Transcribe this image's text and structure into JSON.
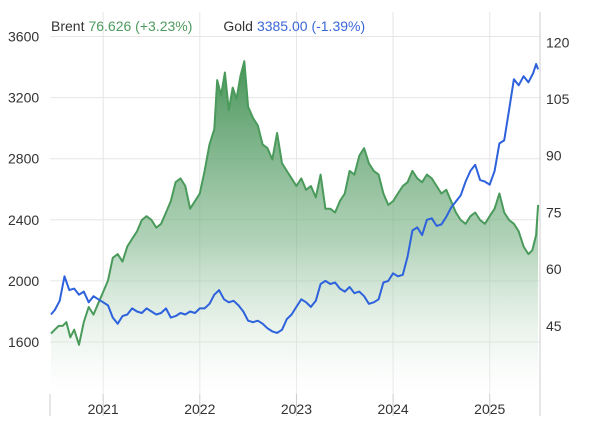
{
  "legend": {
    "brent": {
      "name": "Brent",
      "value": "76.626 (+3.23%)"
    },
    "gold": {
      "name": "Gold",
      "value": "3385.00 (-1.39%)"
    }
  },
  "colors": {
    "brent_line": "#4a9a5c",
    "brent_fill_top": "#3e8e50",
    "gold_line": "#2e62dc",
    "grid": "#e6e6e6",
    "axis": "#cccccc"
  },
  "chart_data": {
    "type": "line",
    "grid": true,
    "legend_placement": "top-left",
    "left_axis": {
      "series": "Gold",
      "ticks": [
        1600,
        2000,
        2400,
        2800,
        3200,
        3600
      ],
      "range": [
        1260,
        3760
      ]
    },
    "right_axis": {
      "series": "Brent",
      "ticks": [
        45,
        60,
        75,
        90,
        105,
        120
      ],
      "range": [
        27,
        128
      ]
    },
    "x_axis": {
      "ticks": [
        "2021",
        "2022",
        "2023",
        "2024",
        "2025"
      ],
      "range": [
        2020.45,
        2025.52
      ]
    },
    "series": [
      {
        "name": "Brent",
        "axis": "right",
        "style": "area",
        "x": [
          2020.46,
          2020.5,
          2020.54,
          2020.58,
          2020.62,
          2020.66,
          2020.7,
          2020.75,
          2020.8,
          2020.85,
          2020.9,
          2020.95,
          2021.0,
          2021.05,
          2021.1,
          2021.15,
          2021.2,
          2021.25,
          2021.3,
          2021.35,
          2021.4,
          2021.45,
          2021.5,
          2021.55,
          2021.6,
          2021.65,
          2021.7,
          2021.75,
          2021.8,
          2021.85,
          2021.9,
          2021.95,
          2022.0,
          2022.05,
          2022.1,
          2022.15,
          2022.18,
          2022.22,
          2022.26,
          2022.3,
          2022.34,
          2022.38,
          2022.42,
          2022.46,
          2022.5,
          2022.55,
          2022.6,
          2022.65,
          2022.7,
          2022.75,
          2022.8,
          2022.85,
          2022.9,
          2022.95,
          2023.0,
          2023.05,
          2023.1,
          2023.15,
          2023.2,
          2023.25,
          2023.3,
          2023.35,
          2023.4,
          2023.45,
          2023.5,
          2023.55,
          2023.6,
          2023.65,
          2023.7,
          2023.75,
          2023.8,
          2023.85,
          2023.9,
          2023.95,
          2024.0,
          2024.05,
          2024.1,
          2024.15,
          2024.2,
          2024.25,
          2024.3,
          2024.35,
          2024.4,
          2024.45,
          2024.5,
          2024.55,
          2024.6,
          2024.65,
          2024.7,
          2024.75,
          2024.8,
          2024.85,
          2024.9,
          2024.95,
          2025.0,
          2025.05,
          2025.1,
          2025.15,
          2025.2,
          2025.25,
          2025.3,
          2025.35,
          2025.4,
          2025.44,
          2025.48,
          2025.5
        ],
        "values": [
          43,
          44,
          45,
          45,
          46,
          42,
          44,
          40,
          46,
          50,
          48,
          51,
          54,
          57,
          63,
          64,
          62,
          66,
          68,
          70,
          73,
          74,
          73,
          71,
          72,
          75,
          78,
          83,
          84,
          82,
          76,
          78,
          80,
          86,
          93,
          97,
          110,
          106,
          112,
          102,
          108,
          105,
          111,
          115,
          103,
          100,
          98,
          93,
          92,
          89,
          96,
          88,
          86,
          84,
          82,
          84,
          81,
          82,
          79,
          85,
          76,
          76,
          75,
          78,
          80,
          86,
          85,
          90,
          92,
          88,
          86,
          85,
          80,
          77,
          78,
          80,
          82,
          83,
          86,
          84,
          83,
          85,
          84,
          82,
          80,
          81,
          78,
          75,
          73,
          72,
          74,
          75,
          73,
          72,
          74,
          76,
          80,
          75,
          73,
          72,
          70,
          66,
          64,
          65,
          69,
          77
        ]
      },
      {
        "name": "Gold",
        "axis": "left",
        "style": "line",
        "x": [
          2020.46,
          2020.5,
          2020.55,
          2020.6,
          2020.65,
          2020.7,
          2020.75,
          2020.8,
          2020.85,
          2020.9,
          2020.95,
          2021.0,
          2021.05,
          2021.1,
          2021.15,
          2021.2,
          2021.25,
          2021.3,
          2021.35,
          2021.4,
          2021.45,
          2021.5,
          2021.55,
          2021.6,
          2021.65,
          2021.7,
          2021.75,
          2021.8,
          2021.85,
          2021.9,
          2021.95,
          2022.0,
          2022.05,
          2022.1,
          2022.15,
          2022.2,
          2022.25,
          2022.3,
          2022.35,
          2022.4,
          2022.45,
          2022.5,
          2022.55,
          2022.6,
          2022.65,
          2022.7,
          2022.75,
          2022.8,
          2022.85,
          2022.9,
          2022.95,
          2023.0,
          2023.05,
          2023.1,
          2023.15,
          2023.2,
          2023.25,
          2023.3,
          2023.35,
          2023.4,
          2023.45,
          2023.5,
          2023.55,
          2023.6,
          2023.65,
          2023.7,
          2023.75,
          2023.8,
          2023.85,
          2023.9,
          2023.95,
          2024.0,
          2024.05,
          2024.1,
          2024.15,
          2024.2,
          2024.25,
          2024.3,
          2024.35,
          2024.4,
          2024.45,
          2024.5,
          2024.55,
          2024.6,
          2024.65,
          2024.7,
          2024.75,
          2024.8,
          2024.85,
          2024.9,
          2024.95,
          2025.0,
          2025.05,
          2025.1,
          2025.15,
          2025.2,
          2025.25,
          2025.3,
          2025.35,
          2025.4,
          2025.45,
          2025.48,
          2025.5
        ],
        "values": [
          1780,
          1810,
          1870,
          2030,
          1940,
          1950,
          1910,
          1930,
          1860,
          1900,
          1880,
          1860,
          1840,
          1760,
          1720,
          1770,
          1780,
          1820,
          1800,
          1790,
          1820,
          1800,
          1780,
          1790,
          1820,
          1760,
          1770,
          1790,
          1780,
          1800,
          1790,
          1820,
          1820,
          1850,
          1910,
          1940,
          1880,
          1860,
          1870,
          1840,
          1800,
          1740,
          1730,
          1740,
          1720,
          1690,
          1670,
          1660,
          1680,
          1750,
          1780,
          1830,
          1880,
          1860,
          1830,
          1870,
          1980,
          2000,
          1980,
          1990,
          1950,
          1930,
          1960,
          1920,
          1930,
          1900,
          1850,
          1860,
          1880,
          1990,
          2000,
          2050,
          2030,
          2040,
          2160,
          2330,
          2350,
          2300,
          2400,
          2410,
          2360,
          2370,
          2420,
          2480,
          2520,
          2560,
          2650,
          2720,
          2760,
          2660,
          2650,
          2630,
          2720,
          2900,
          2920,
          3120,
          3320,
          3280,
          3340,
          3300,
          3360,
          3420,
          3385
        ]
      }
    ]
  }
}
